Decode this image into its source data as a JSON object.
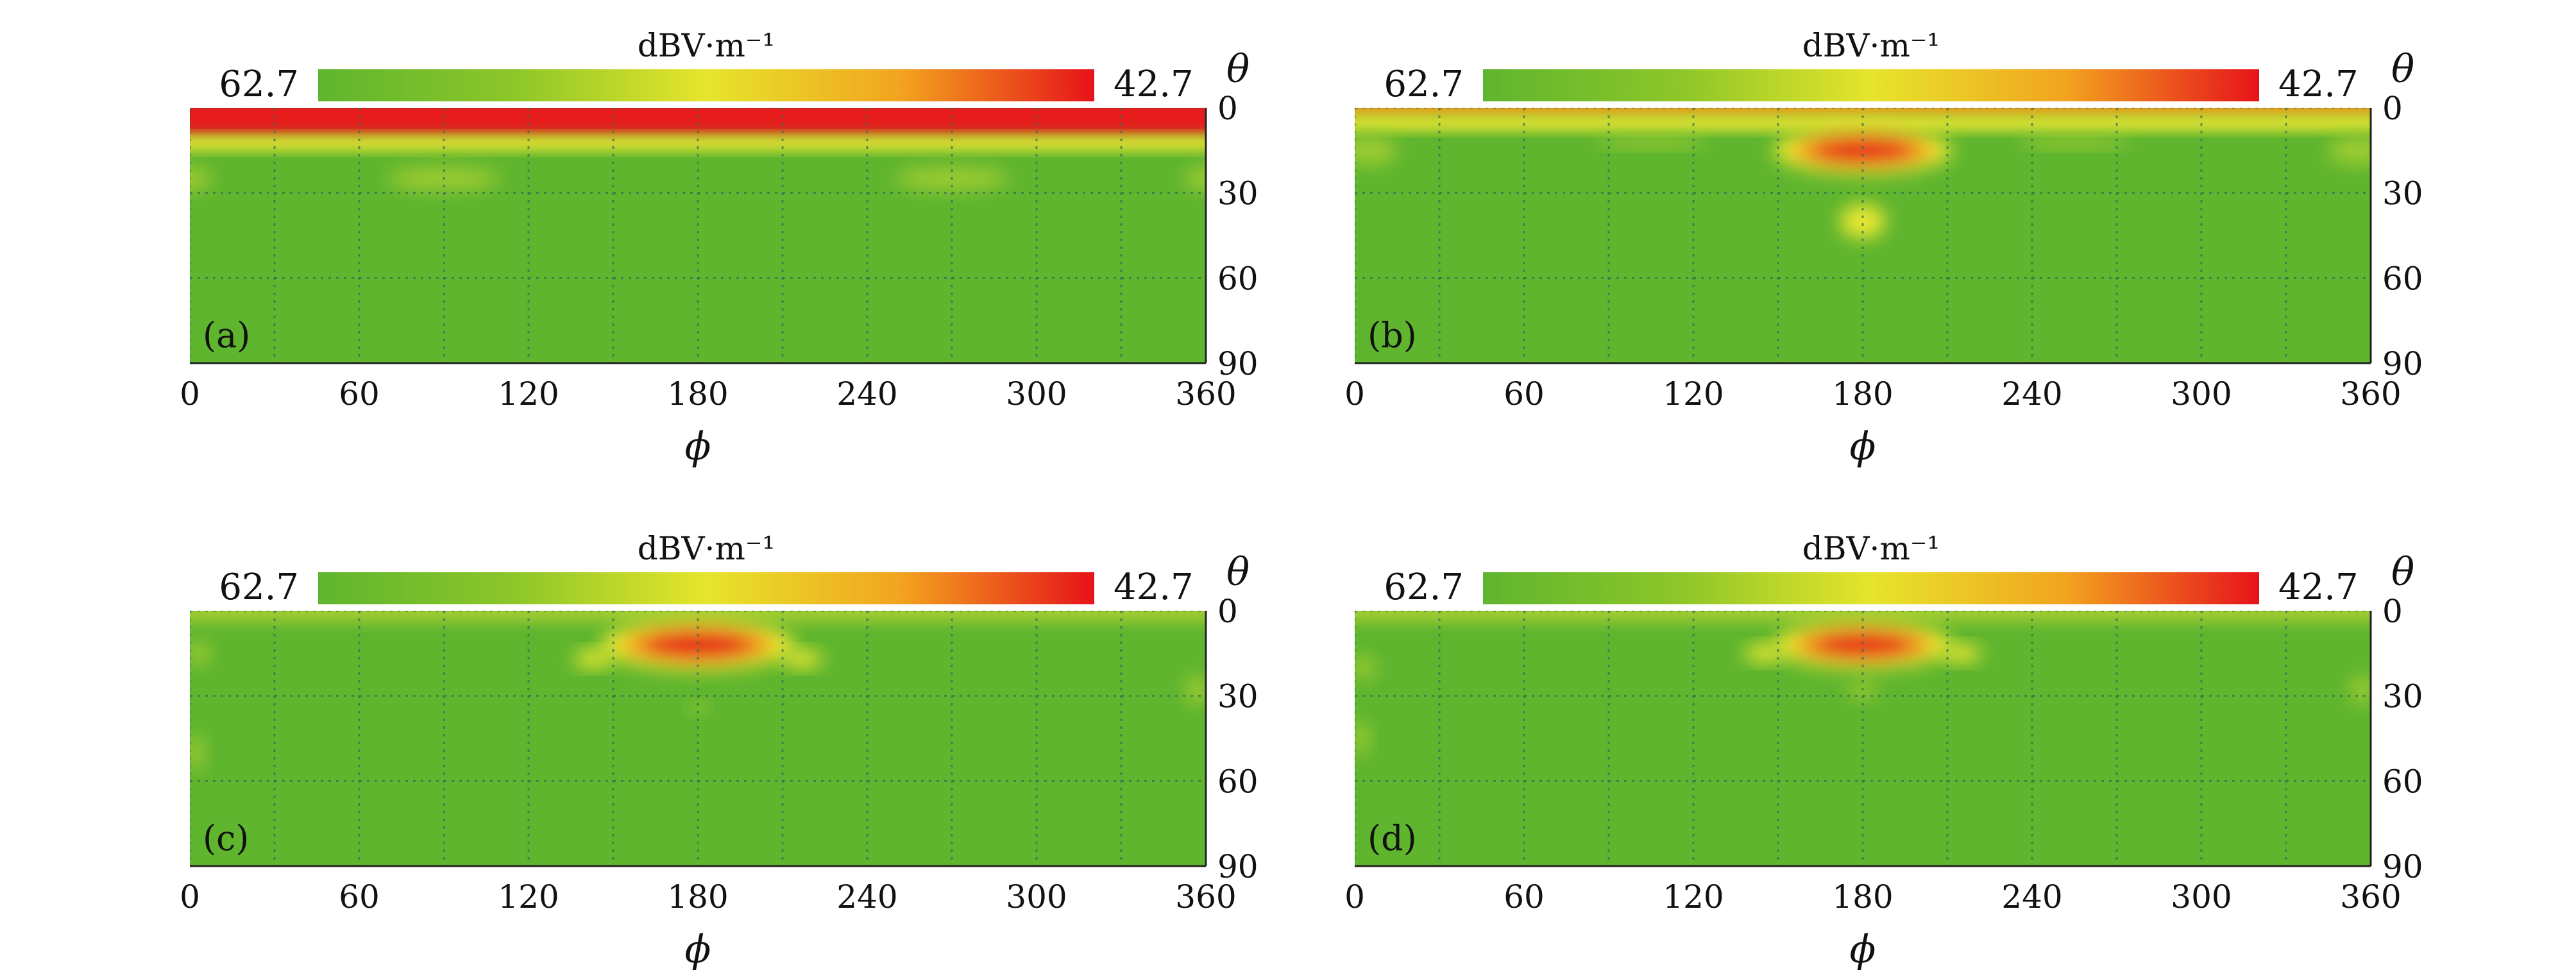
{
  "figure": {
    "colorbar": {
      "unit": "dBV·m⁻¹",
      "left_value": "62.7",
      "right_value": "42.7",
      "colors": [
        "#5fb52e",
        "#8cc629",
        "#e6e52c",
        "#f2a41f",
        "#e6131a"
      ]
    },
    "x_symbol": "ϕ",
    "y_symbol": "θ",
    "field_colors": {
      "background": "#5fb52e",
      "low": "#9fcc32",
      "mid": "#ece830",
      "high": "#f09a1e",
      "peak": "#e61b1a"
    }
  },
  "chart_data": [
    {
      "type": "heatmap",
      "panel_label": "(a)",
      "xlabel": "ϕ",
      "ylabel": "θ",
      "unit": "dBV·m⁻¹",
      "x_ticks": [
        "0",
        "60",
        "120",
        "180",
        "240",
        "300",
        "360"
      ],
      "y_ticks": [
        "0",
        "30",
        "60",
        "90"
      ],
      "xlim": [
        0,
        360
      ],
      "ylim": [
        0,
        90
      ],
      "colorbar_range": [
        62.7,
        42.7
      ],
      "grid": true,
      "features": [
        {
          "kind": "band",
          "theta": [
            0,
            10
          ],
          "level": "peak"
        },
        {
          "kind": "band",
          "theta": [
            10,
            15
          ],
          "level": "mid"
        },
        {
          "kind": "spot",
          "phi": 90,
          "theta": 25,
          "w": 40,
          "h": 8,
          "level": "low"
        },
        {
          "kind": "spot",
          "phi": 270,
          "theta": 25,
          "w": 40,
          "h": 8,
          "level": "low"
        },
        {
          "kind": "spot",
          "phi": 0,
          "theta": 25,
          "w": 15,
          "h": 8,
          "level": "low"
        },
        {
          "kind": "spot",
          "phi": 360,
          "theta": 25,
          "w": 15,
          "h": 8,
          "level": "low"
        }
      ]
    },
    {
      "type": "heatmap",
      "panel_label": "(b)",
      "xlabel": "ϕ",
      "ylabel": "θ",
      "unit": "dBV·m⁻¹",
      "x_ticks": [
        "0",
        "60",
        "120",
        "180",
        "240",
        "300",
        "360"
      ],
      "y_ticks": [
        "0",
        "30",
        "60",
        "90"
      ],
      "xlim": [
        0,
        360
      ],
      "ylim": [
        0,
        90
      ],
      "colorbar_range": [
        62.7,
        42.7
      ],
      "grid": true,
      "features": [
        {
          "kind": "band",
          "theta": [
            0,
            3
          ],
          "level": "high"
        },
        {
          "kind": "band",
          "theta": [
            3,
            8
          ],
          "level": "mid"
        },
        {
          "kind": "spot",
          "phi": 180,
          "theta": 15,
          "w": 55,
          "h": 14,
          "level": "peak"
        },
        {
          "kind": "spot",
          "phi": 180,
          "theta": 40,
          "w": 16,
          "h": 12,
          "level": "mid"
        },
        {
          "kind": "spot",
          "phi": 105,
          "theta": 12,
          "w": 40,
          "h": 4,
          "level": "low"
        },
        {
          "kind": "spot",
          "phi": 255,
          "theta": 12,
          "w": 40,
          "h": 4,
          "level": "low"
        },
        {
          "kind": "spot",
          "phi": 5,
          "theta": 15,
          "w": 20,
          "h": 10,
          "level": "low"
        },
        {
          "kind": "spot",
          "phi": 355,
          "theta": 15,
          "w": 20,
          "h": 10,
          "level": "low"
        }
      ]
    },
    {
      "type": "heatmap",
      "panel_label": "(c)",
      "xlabel": "ϕ",
      "ylabel": "θ",
      "unit": "dBV·m⁻¹",
      "x_ticks": [
        "0",
        "60",
        "120",
        "180",
        "240",
        "300",
        "360"
      ],
      "y_ticks": [
        "0",
        "30",
        "60",
        "90"
      ],
      "xlim": [
        0,
        360
      ],
      "ylim": [
        0,
        90
      ],
      "colorbar_range": [
        62.7,
        42.7
      ],
      "grid": true,
      "features": [
        {
          "kind": "band",
          "theta": [
            0,
            4
          ],
          "level": "low"
        },
        {
          "kind": "spot",
          "phi": 180,
          "theta": 12,
          "w": 60,
          "h": 15,
          "level": "peak"
        },
        {
          "kind": "spot",
          "phi": 143,
          "theta": 17,
          "w": 14,
          "h": 6,
          "level": "mid"
        },
        {
          "kind": "spot",
          "phi": 217,
          "theta": 17,
          "w": 14,
          "h": 6,
          "level": "mid"
        },
        {
          "kind": "spot",
          "phi": 180,
          "theta": 34,
          "w": 6,
          "h": 4,
          "level": "low"
        },
        {
          "kind": "spot",
          "phi": 3,
          "theta": 15,
          "w": 8,
          "h": 8,
          "level": "low"
        },
        {
          "kind": "spot",
          "phi": 357,
          "theta": 28,
          "w": 8,
          "h": 10,
          "level": "low"
        },
        {
          "kind": "spot",
          "phi": 2,
          "theta": 50,
          "w": 6,
          "h": 12,
          "level": "low"
        }
      ]
    },
    {
      "type": "heatmap",
      "panel_label": "(d)",
      "xlabel": "ϕ",
      "ylabel": "θ",
      "unit": "dBV·m⁻¹",
      "x_ticks": [
        "0",
        "60",
        "120",
        "180",
        "240",
        "300",
        "360"
      ],
      "y_ticks": [
        "0",
        "30",
        "60",
        "90"
      ],
      "xlim": [
        0,
        360
      ],
      "ylim": [
        0,
        90
      ],
      "colorbar_range": [
        62.7,
        42.7
      ],
      "grid": true,
      "features": [
        {
          "kind": "band",
          "theta": [
            0,
            4
          ],
          "level": "low"
        },
        {
          "kind": "spot",
          "phi": 180,
          "theta": 12,
          "w": 55,
          "h": 14,
          "level": "peak"
        },
        {
          "kind": "spot",
          "phi": 145,
          "theta": 15,
          "w": 14,
          "h": 6,
          "level": "mid"
        },
        {
          "kind": "spot",
          "phi": 215,
          "theta": 15,
          "w": 14,
          "h": 6,
          "level": "mid"
        },
        {
          "kind": "spot",
          "phi": 180,
          "theta": 28,
          "w": 10,
          "h": 6,
          "level": "low"
        },
        {
          "kind": "spot",
          "phi": 3,
          "theta": 20,
          "w": 8,
          "h": 8,
          "level": "low"
        },
        {
          "kind": "spot",
          "phi": 357,
          "theta": 28,
          "w": 8,
          "h": 10,
          "level": "low"
        },
        {
          "kind": "spot",
          "phi": 2,
          "theta": 45,
          "w": 6,
          "h": 12,
          "level": "low"
        }
      ]
    }
  ]
}
